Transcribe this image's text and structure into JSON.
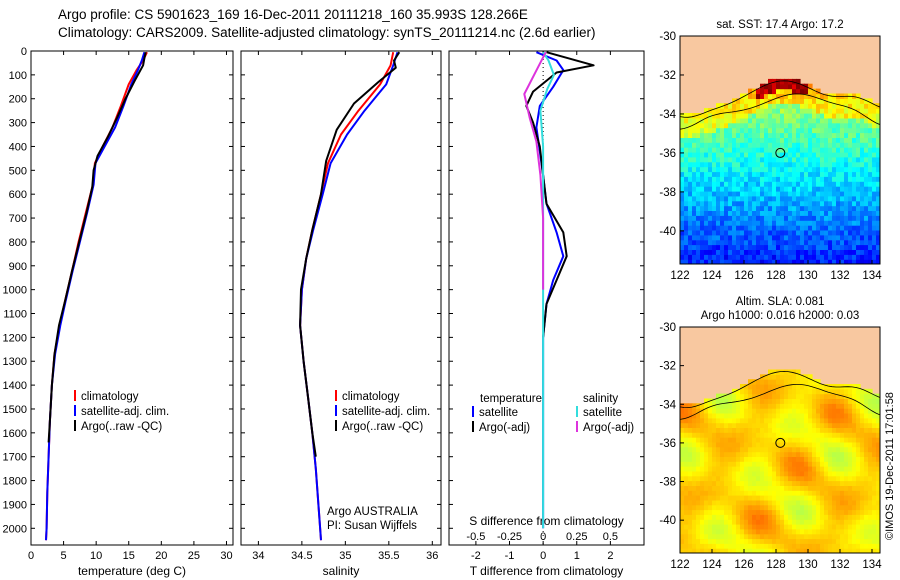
{
  "header": {
    "line1": "Argo profile: CS 5901623_169 16-Dec-2011 20111218_160 35.993S 128.266E",
    "line2": "Climatology: CARS2009. Satellite-adjusted climatology: synTS_20111214.nc (2.6d earlier)"
  },
  "copyright": "©IMOS 19-Dec-2011 17:01:58",
  "colors": {
    "climatology": "#ff0000",
    "satellite": "#0000ff",
    "argo": "#000000",
    "sal_satellite": "#33dddd",
    "sal_argo": "#dd33dd",
    "land": "#f8c8a0"
  },
  "chart_data": [
    {
      "type": "line",
      "panel": "temperature",
      "xlabel": "temperature (deg C)",
      "ylabel": "",
      "xlim": [
        0,
        31
      ],
      "ylim": [
        2070,
        0
      ],
      "xticks": [
        0,
        5,
        10,
        15,
        20,
        25,
        30
      ],
      "yticks": [
        0,
        100,
        200,
        300,
        400,
        500,
        600,
        700,
        800,
        900,
        1000,
        1100,
        1200,
        1300,
        1400,
        1500,
        1600,
        1700,
        1800,
        1900,
        2000
      ],
      "legend": [
        "climatology",
        "satellite-adj. clim.",
        "Argo(..raw -QC)"
      ],
      "series": [
        {
          "name": "climatology",
          "points": [
            [
              17.8,
              5
            ],
            [
              17.2,
              40
            ],
            [
              16.2,
              80
            ],
            [
              15.0,
              140
            ],
            [
              13.8,
              230
            ],
            [
              12.5,
              320
            ],
            [
              11.0,
              400
            ],
            [
              9.8,
              470
            ],
            [
              9.5,
              560
            ],
            [
              8.4,
              680
            ],
            [
              7.3,
              800
            ],
            [
              6.3,
              920
            ],
            [
              5.2,
              1050
            ],
            [
              4.4,
              1150
            ],
            [
              3.6,
              1270
            ],
            [
              3.2,
              1400
            ],
            [
              2.9,
              1550
            ],
            [
              2.7,
              1700
            ],
            [
              2.5,
              1850
            ],
            [
              2.4,
              2000
            ],
            [
              2.3,
              2050
            ]
          ]
        },
        {
          "name": "satellite-adj. clim.",
          "points": [
            [
              17.4,
              5
            ],
            [
              17.0,
              40
            ],
            [
              16.4,
              80
            ],
            [
              15.4,
              140
            ],
            [
              14.2,
              230
            ],
            [
              12.9,
              320
            ],
            [
              11.3,
              400
            ],
            [
              9.9,
              470
            ],
            [
              9.6,
              560
            ],
            [
              8.6,
              680
            ],
            [
              7.5,
              800
            ],
            [
              6.4,
              920
            ],
            [
              5.3,
              1050
            ],
            [
              4.5,
              1150
            ],
            [
              3.7,
              1270
            ],
            [
              3.2,
              1400
            ],
            [
              2.9,
              1550
            ],
            [
              2.7,
              1700
            ],
            [
              2.5,
              1850
            ],
            [
              2.4,
              2000
            ],
            [
              2.3,
              2050
            ]
          ]
        },
        {
          "name": "Argo(..raw -QC)",
          "points": [
            [
              17.6,
              5
            ],
            [
              17.4,
              30
            ],
            [
              17.2,
              60
            ],
            [
              16.0,
              120
            ],
            [
              14.5,
              200
            ],
            [
              13.2,
              280
            ],
            [
              11.8,
              360
            ],
            [
              10.2,
              440
            ],
            [
              9.6,
              500
            ],
            [
              9.4,
              570
            ],
            [
              8.5,
              680
            ],
            [
              7.4,
              800
            ],
            [
              6.3,
              920
            ],
            [
              5.2,
              1050
            ],
            [
              4.3,
              1150
            ],
            [
              3.6,
              1270
            ],
            [
              3.2,
              1400
            ],
            [
              2.9,
              1550
            ],
            [
              2.7,
              1640
            ]
          ]
        }
      ]
    },
    {
      "type": "line",
      "panel": "salinity",
      "xlabel": "salinity",
      "ylabel": "",
      "xlim": [
        33.8,
        36.1
      ],
      "ylim": [
        2070,
        0
      ],
      "xticks": [
        34,
        34.5,
        35,
        35.5,
        36
      ],
      "xticklabels": [
        "34",
        "34.5",
        "35",
        "35.5",
        "36"
      ],
      "legend": [
        "climatology",
        "satellite-adj. clim.",
        "Argo(..raw -QC)"
      ],
      "annotation": [
        "Argo AUSTRALIA",
        "PI: Susan Wijffels"
      ],
      "series": [
        {
          "name": "climatology",
          "points": [
            [
              35.55,
              5
            ],
            [
              35.52,
              60
            ],
            [
              35.4,
              140
            ],
            [
              35.15,
              250
            ],
            [
              34.95,
              350
            ],
            [
              34.8,
              470
            ],
            [
              34.72,
              600
            ],
            [
              34.62,
              750
            ],
            [
              34.55,
              870
            ],
            [
              34.5,
              1000
            ],
            [
              34.48,
              1150
            ],
            [
              34.52,
              1300
            ],
            [
              34.57,
              1450
            ],
            [
              34.62,
              1600
            ],
            [
              34.66,
              1750
            ],
            [
              34.69,
              1900
            ],
            [
              34.72,
              2050
            ]
          ]
        },
        {
          "name": "satellite-adj. clim.",
          "points": [
            [
              35.6,
              5
            ],
            [
              35.55,
              60
            ],
            [
              35.47,
              140
            ],
            [
              35.22,
              250
            ],
            [
              35.02,
              350
            ],
            [
              34.83,
              470
            ],
            [
              34.74,
              600
            ],
            [
              34.63,
              750
            ],
            [
              34.55,
              870
            ],
            [
              34.5,
              1000
            ],
            [
              34.48,
              1150
            ],
            [
              34.52,
              1300
            ],
            [
              34.57,
              1450
            ],
            [
              34.62,
              1600
            ],
            [
              34.66,
              1750
            ],
            [
              34.69,
              1900
            ],
            [
              34.72,
              2050
            ]
          ]
        },
        {
          "name": "Argo(..raw -QC)",
          "points": [
            [
              35.62,
              5
            ],
            [
              35.56,
              40
            ],
            [
              35.58,
              70
            ],
            [
              35.38,
              130
            ],
            [
              35.1,
              220
            ],
            [
              34.9,
              330
            ],
            [
              34.78,
              460
            ],
            [
              34.72,
              600
            ],
            [
              34.62,
              750
            ],
            [
              34.55,
              870
            ],
            [
              34.49,
              1000
            ],
            [
              34.48,
              1150
            ],
            [
              34.52,
              1300
            ],
            [
              34.57,
              1450
            ],
            [
              34.62,
              1600
            ],
            [
              34.66,
              1700
            ]
          ]
        }
      ]
    },
    {
      "type": "line",
      "panel": "difference",
      "xlabel": "T difference from climatology",
      "xlabel_top": "S difference from climatology",
      "xlim": [
        -2.8,
        3.0
      ],
      "ylim": [
        2070,
        0
      ],
      "xticks": [
        -2,
        -1,
        0,
        1,
        2
      ],
      "xticks_top": [
        -0.5,
        -0.25,
        0,
        0.25,
        0.5
      ],
      "legend_headers": [
        "temperature",
        "salinity"
      ],
      "legend": [
        "satellite",
        "Argo(-adj)",
        "satellite",
        "Argo(-adj)"
      ],
      "series": [
        {
          "name": "temperature satellite",
          "points": [
            [
              -0.2,
              5
            ],
            [
              0.4,
              40
            ],
            [
              0.6,
              80
            ],
            [
              0.3,
              150
            ],
            [
              -0.1,
              230
            ],
            [
              -0.2,
              320
            ],
            [
              -0.1,
              420
            ],
            [
              0.0,
              520
            ],
            [
              0.1,
              640
            ],
            [
              0.4,
              760
            ],
            [
              0.6,
              860
            ],
            [
              0.3,
              960
            ],
            [
              0.1,
              1060
            ],
            [
              0.0,
              1200
            ],
            [
              0.0,
              1500
            ],
            [
              0.0,
              2000
            ]
          ]
        },
        {
          "name": "temperature Argo(-adj)",
          "points": [
            [
              0.1,
              5
            ],
            [
              1.5,
              60
            ],
            [
              0.4,
              90
            ],
            [
              -0.3,
              170
            ],
            [
              -0.5,
              230
            ],
            [
              -0.3,
              300
            ],
            [
              -0.1,
              400
            ],
            [
              0.0,
              520
            ],
            [
              0.1,
              640
            ],
            [
              0.6,
              760
            ],
            [
              0.7,
              860
            ],
            [
              0.4,
              960
            ],
            [
              0.1,
              1060
            ],
            [
              0.0,
              1200
            ]
          ]
        },
        {
          "name": "salinity satellite",
          "points": [
            [
              0.0,
              5
            ],
            [
              0.04,
              40
            ],
            [
              0.08,
              100
            ],
            [
              0.03,
              160
            ],
            [
              -0.02,
              250
            ],
            [
              0.0,
              400
            ],
            [
              0.0,
              700
            ],
            [
              0.0,
              1200
            ],
            [
              0.0,
              1700
            ],
            [
              0.0,
              2000
            ]
          ]
        },
        {
          "name": "salinity Argo(-adj)",
          "points": [
            [
              0.02,
              5
            ],
            [
              -0.04,
              70
            ],
            [
              -0.14,
              180
            ],
            [
              -0.1,
              280
            ],
            [
              -0.05,
              380
            ],
            [
              -0.02,
              520
            ],
            [
              0.0,
              700
            ],
            [
              0.0,
              1000
            ]
          ]
        }
      ]
    },
    {
      "type": "heatmap",
      "panel": "map-sst",
      "title": "sat. SST: 17.4  Argo: 17.2",
      "xlim": [
        122,
        134.5
      ],
      "ylim": [
        -41.7,
        -30
      ],
      "xticks": [
        122,
        124,
        126,
        128,
        130,
        132,
        134
      ],
      "yticks": [
        -30,
        -32,
        -34,
        -36,
        -38,
        -40
      ],
      "marker": [
        128.27,
        -36.0
      ]
    },
    {
      "type": "heatmap",
      "panel": "map-sla",
      "title": [
        "Altim. SLA: 0.081",
        "Argo h1000: 0.016 h2000: 0.03"
      ],
      "xlim": [
        122,
        134.5
      ],
      "ylim": [
        -41.7,
        -30
      ],
      "xticks": [
        122,
        124,
        126,
        128,
        130,
        132,
        134
      ],
      "yticks": [
        -30,
        -32,
        -34,
        -36,
        -38,
        -40
      ],
      "marker": [
        128.27,
        -36.0
      ]
    }
  ]
}
